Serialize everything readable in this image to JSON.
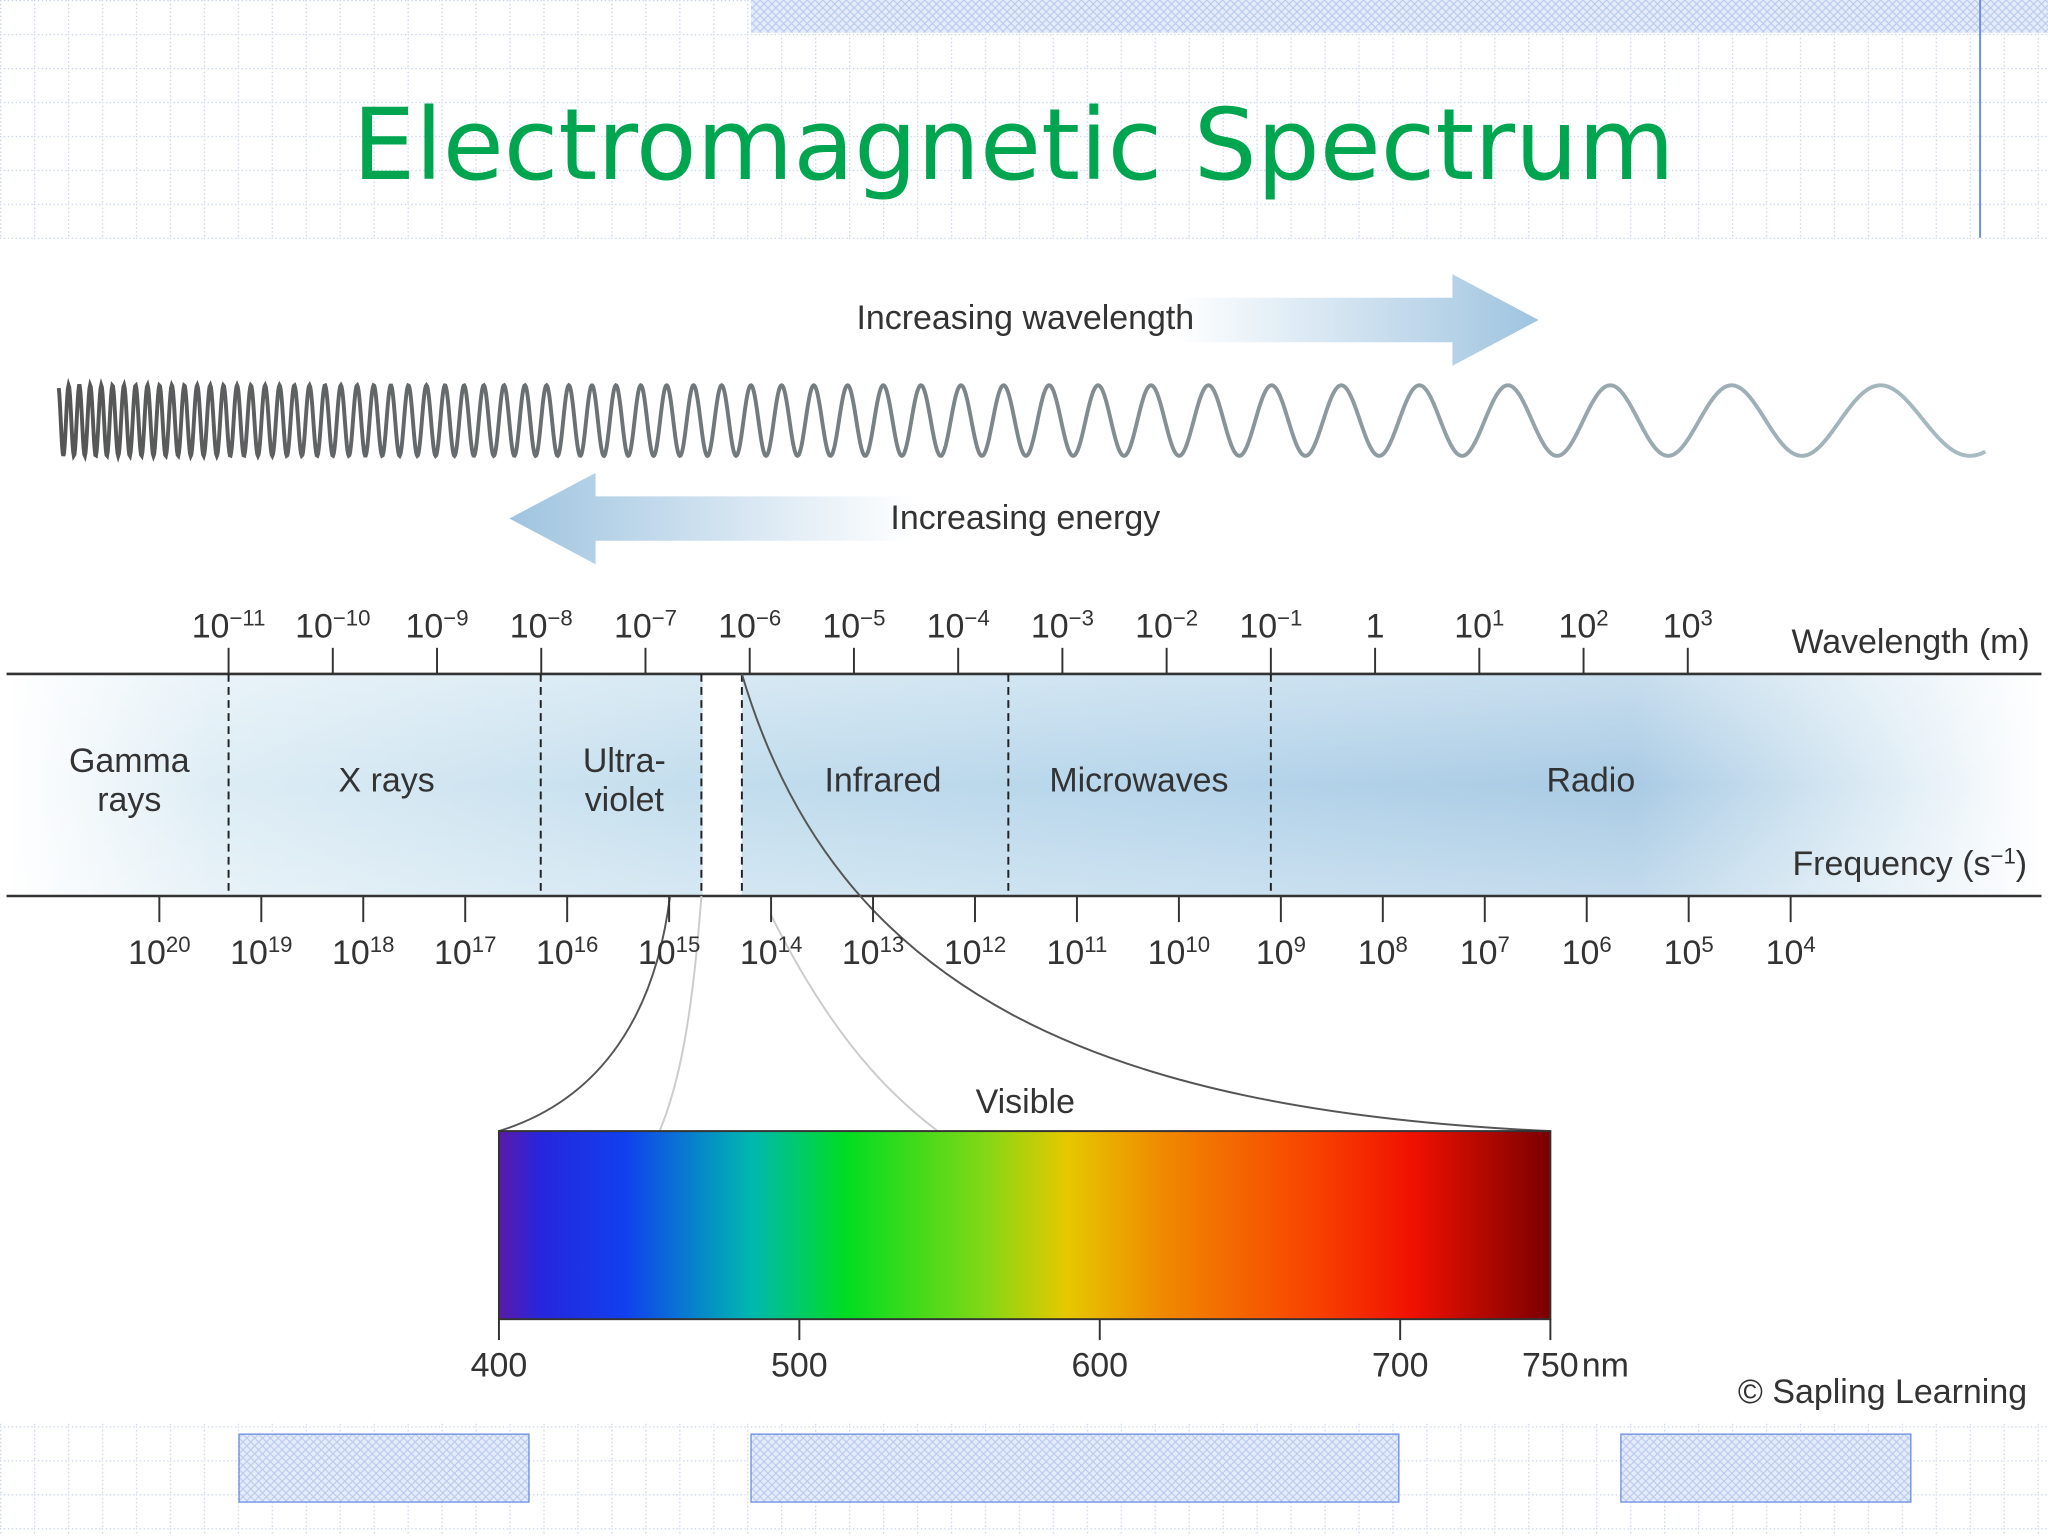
{
  "title": "Electromagnetic Spectrum",
  "diagram": {
    "wavelength_arrow": "Increasing wavelength",
    "energy_arrow": "Increasing energy",
    "wavelength_axis": {
      "label": "Wavelength (m)",
      "ticks": [
        {
          "base": "10",
          "exp": "−11"
        },
        {
          "base": "10",
          "exp": "−10"
        },
        {
          "base": "10",
          "exp": "−9"
        },
        {
          "base": "10",
          "exp": "−8"
        },
        {
          "base": "10",
          "exp": "−7"
        },
        {
          "base": "10",
          "exp": "−6"
        },
        {
          "base": "10",
          "exp": "−5"
        },
        {
          "base": "10",
          "exp": "−4"
        },
        {
          "base": "10",
          "exp": "−3"
        },
        {
          "base": "10",
          "exp": "−2"
        },
        {
          "base": "10",
          "exp": "−1"
        },
        {
          "base": "1"
        },
        {
          "base": "10",
          "exp": "1"
        },
        {
          "base": "10",
          "exp": "2"
        },
        {
          "base": "10",
          "exp": "3"
        }
      ]
    },
    "frequency_axis": {
      "label": {
        "text": "Frequency (s",
        "exp": "−1",
        "close": ")"
      },
      "ticks": [
        {
          "base": "10",
          "exp": "20"
        },
        {
          "base": "10",
          "exp": "19"
        },
        {
          "base": "10",
          "exp": "18"
        },
        {
          "base": "10",
          "exp": "17"
        },
        {
          "base": "10",
          "exp": "16"
        },
        {
          "base": "10",
          "exp": "15"
        },
        {
          "base": "10",
          "exp": "14"
        },
        {
          "base": "10",
          "exp": "13"
        },
        {
          "base": "10",
          "exp": "12"
        },
        {
          "base": "10",
          "exp": "11"
        },
        {
          "base": "10",
          "exp": "10"
        },
        {
          "base": "10",
          "exp": "9"
        },
        {
          "base": "10",
          "exp": "8"
        },
        {
          "base": "10",
          "exp": "7"
        },
        {
          "base": "10",
          "exp": "6"
        },
        {
          "base": "10",
          "exp": "5"
        },
        {
          "base": "10",
          "exp": "4"
        }
      ]
    },
    "regions": [
      {
        "lines": [
          "Gamma",
          "rays"
        ]
      },
      {
        "lines": [
          "X rays"
        ]
      },
      {
        "lines": [
          "Ultra-",
          "violet"
        ]
      },
      {
        "lines": [
          "Infrared"
        ]
      },
      {
        "lines": [
          "Microwaves"
        ]
      },
      {
        "lines": [
          "Radio"
        ]
      }
    ],
    "visible": {
      "label": "Visible",
      "xlim": [
        400,
        750
      ],
      "ticks": [
        400,
        500,
        600,
        700,
        750
      ],
      "unit": "nm"
    },
    "credit": "© Sapling Learning"
  }
}
